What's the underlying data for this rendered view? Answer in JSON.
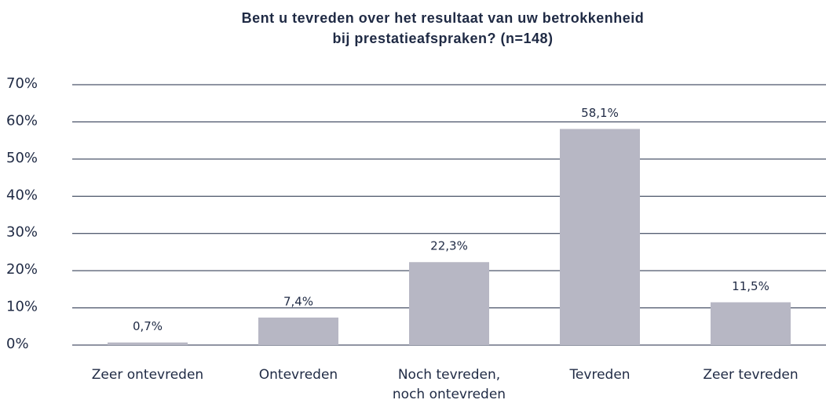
{
  "chart_data": {
    "type": "bar",
    "title": [
      "Bent u tevreden over het resultaat van uw betrokkenheid",
      "bij prestatieafspraken? (n=148)"
    ],
    "categories": [
      "Zeer ontevreden",
      "Ontevreden",
      "Noch tevreden, noch ontevreden",
      "Tevreden",
      "Zeer tevreden"
    ],
    "values": [
      0.7,
      7.4,
      22.3,
      58.1,
      11.5
    ],
    "value_labels": [
      "0,7%",
      "7,4%",
      "22,3%",
      "58,1%",
      "11,5%"
    ],
    "color": "#b7b7c4",
    "ylim": [
      0,
      70
    ],
    "yticks": [
      {
        "value": 0,
        "label": "0%"
      },
      {
        "value": 10,
        "label": "10%"
      },
      {
        "value": 20,
        "label": "20%"
      },
      {
        "value": 30,
        "label": "30%"
      },
      {
        "value": 40,
        "label": "40%"
      },
      {
        "value": 50,
        "label": "50%"
      },
      {
        "value": 60,
        "label": "60%"
      },
      {
        "value": 70,
        "label": "70%"
      }
    ],
    "grid": true
  }
}
